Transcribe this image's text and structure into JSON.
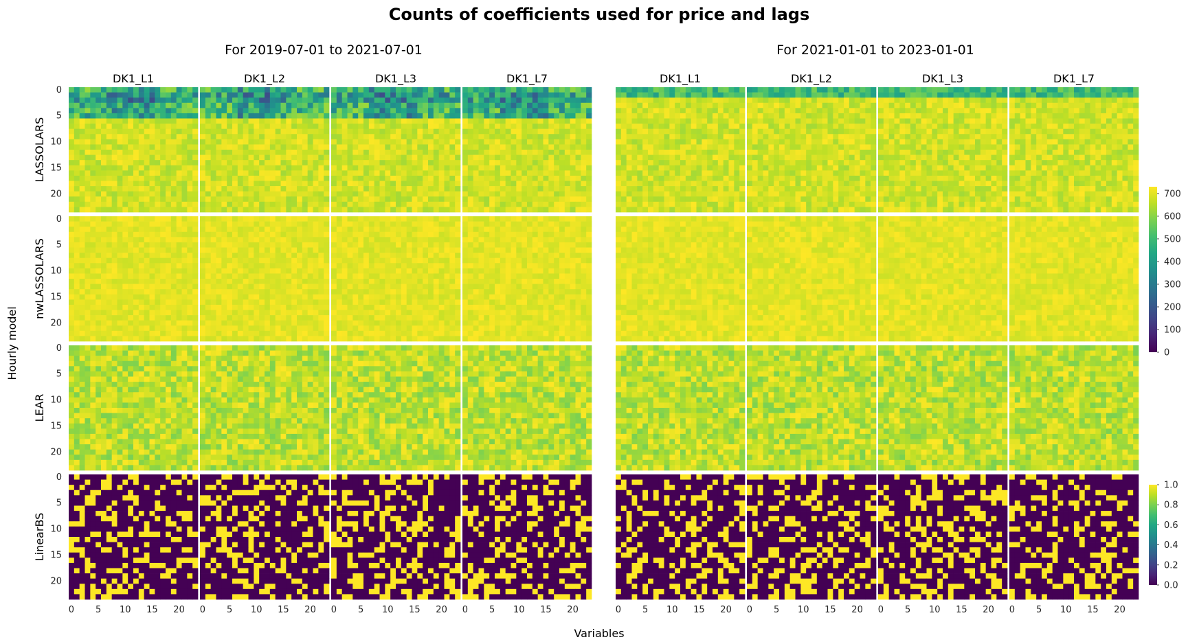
{
  "chart_data": {
    "type": "heatmap",
    "title": "Counts of coefficients used for price and lags",
    "xlabel": "Variables",
    "ylabel": "Hourly model",
    "periods": [
      "For 2019-07-01 to 2021-07-01",
      "For 2021-01-01 to 2023-01-01"
    ],
    "columns": [
      "DK1_L1",
      "DK1_L2",
      "DK1_L3",
      "DK1_L7"
    ],
    "rows": [
      "LASSOLARS",
      "nwLASSOLARS",
      "LEAR",
      "LinearBS"
    ],
    "x_ticks": [
      "0",
      "5",
      "10",
      "15",
      "20"
    ],
    "y_ticks": [
      "0",
      "5",
      "10",
      "15",
      "20"
    ],
    "grid_size": [
      24,
      24
    ],
    "colormap": "viridis",
    "colorbars": [
      {
        "applies_to": [
          "LASSOLARS",
          "nwLASSOLARS",
          "LEAR"
        ],
        "range": [
          0,
          730
        ],
        "ticks": [
          "0",
          "100",
          "200",
          "300",
          "400",
          "500",
          "600",
          "700"
        ]
      },
      {
        "applies_to": [
          "LinearBS"
        ],
        "range": [
          0,
          1
        ],
        "ticks": [
          "0.0",
          "0.2",
          "0.4",
          "0.6",
          "0.8",
          "1.0"
        ]
      }
    ],
    "approximate_values": {
      "LASSOLARS_first_period_hours_0_to_5": "roughly 150-600 (dark blue to green)",
      "LASSOLARS_second_period_hours_0_to_1": "roughly 500-650 (green)",
      "LASSOLARS_other_hours": "roughly 650-730 (yellow-green)",
      "nwLASSOLARS": "roughly 680-730 (yellow)",
      "LEAR": "roughly 600-730 (yellow-green)",
      "LinearBS": "binary 0 or 1"
    }
  },
  "colors": {
    "viridis_low": "#440154",
    "viridis_mid": "#21918c",
    "viridis_high": "#fde725",
    "separator": "#ffffff"
  }
}
